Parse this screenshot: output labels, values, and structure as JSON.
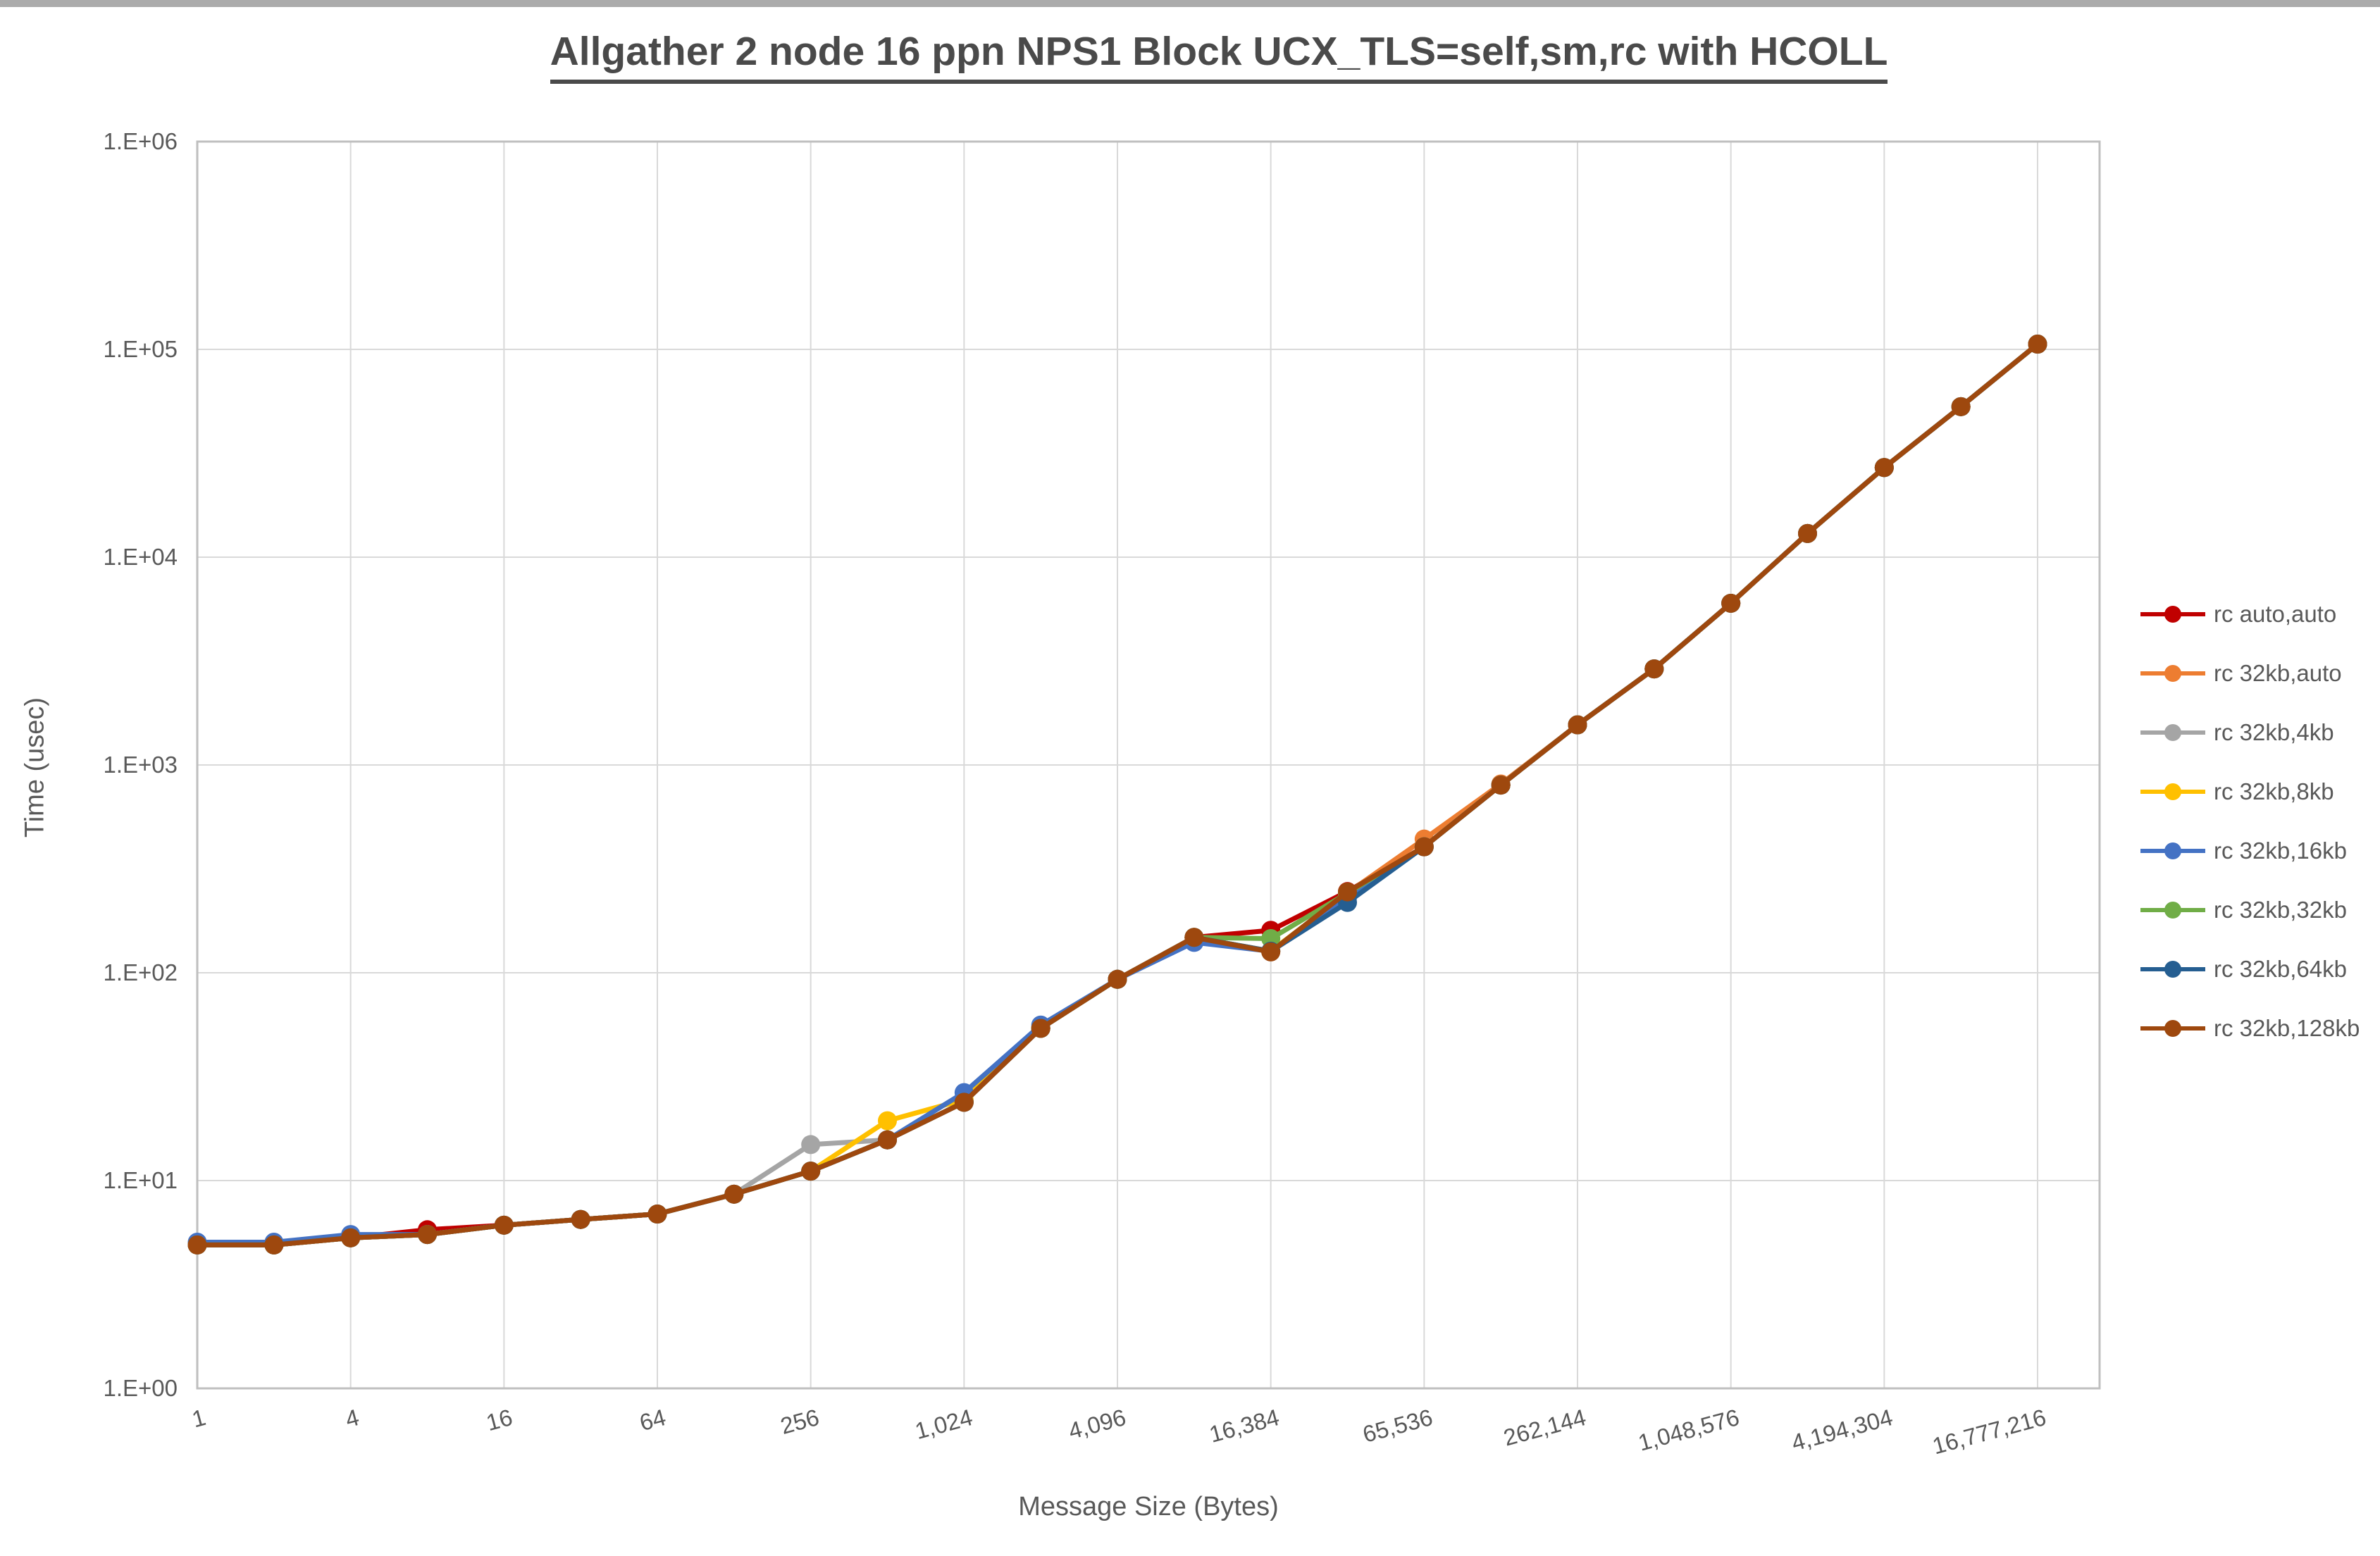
{
  "window": {
    "top_border_color": "#ababab"
  },
  "chart_data": {
    "type": "line",
    "title": "Allgather 2 node 16 ppn NPS1 Block UCX_TLS=self,sm,rc with HCOLL",
    "xlabel": "Message Size (Bytes)",
    "ylabel": "Time (usec)",
    "log_x": true,
    "log_y": true,
    "grid": true,
    "legend_position": "right",
    "grid_color": "#d9d9d9",
    "axis_color": "#bfbfbf",
    "tick_label_color": "#595959",
    "ylim": [
      1,
      1000000
    ],
    "y_ticks": [
      "1.E+00",
      "1.E+01",
      "1.E+02",
      "1.E+03",
      "1.E+04",
      "1.E+05",
      "1.E+06"
    ],
    "x_tick_values": [
      1,
      4,
      16,
      64,
      256,
      1024,
      4096,
      16384,
      65536,
      262144,
      1048576,
      4194304,
      16777216
    ],
    "x_tick_labels": [
      "1",
      "4",
      "16",
      "64",
      "256",
      "1,024",
      "4,096",
      "16,384",
      "65,536",
      "262,144",
      "1,048,576",
      "4,194,304",
      "16,777,216"
    ],
    "x": [
      1,
      2,
      4,
      8,
      16,
      32,
      64,
      128,
      256,
      512,
      1024,
      2048,
      4096,
      8192,
      16384,
      32768,
      65536,
      131072,
      262144,
      524288,
      1048576,
      2097152,
      4194304,
      8388608,
      16777216
    ],
    "series": [
      {
        "name": "rc auto,auto",
        "color": "#c00000",
        "values": [
          4.9,
          4.9,
          5.3,
          5.8,
          6.1,
          6.5,
          6.9,
          8.6,
          11.1,
          15.7,
          23.8,
          54,
          93,
          148,
          160,
          246,
          404,
          800,
          1560,
          2900,
          6000,
          13000,
          27000,
          53000,
          106000
        ]
      },
      {
        "name": "rc 32kb,auto",
        "color": "#ed7d31",
        "values": [
          4.9,
          4.9,
          5.3,
          5.5,
          6.1,
          6.5,
          6.9,
          8.6,
          11.1,
          15.7,
          23.8,
          54,
          93,
          148,
          127,
          242,
          440,
          810,
          1560,
          2900,
          6000,
          13000,
          27000,
          53000,
          106000
        ]
      },
      {
        "name": "rc 32kb,4kb",
        "color": "#a5a5a5",
        "values": [
          4.9,
          4.9,
          5.3,
          5.5,
          6.1,
          6.5,
          6.9,
          8.6,
          14.9,
          15.7,
          23.8,
          54,
          93,
          148,
          127,
          242,
          404,
          800,
          1560,
          2900,
          6000,
          13000,
          27000,
          53000,
          106000
        ]
      },
      {
        "name": "rc 32kb,8kb",
        "color": "#ffc000",
        "values": [
          4.9,
          4.9,
          5.3,
          5.5,
          6.1,
          6.5,
          6.9,
          8.6,
          11.1,
          19.4,
          24.5,
          54,
          93,
          148,
          127,
          242,
          404,
          800,
          1560,
          2900,
          6000,
          13000,
          27000,
          53000,
          106000
        ]
      },
      {
        "name": "rc 32kb,16kb",
        "color": "#4472c4",
        "values": [
          5.05,
          5.05,
          5.5,
          5.5,
          6.1,
          6.5,
          6.9,
          8.6,
          11.1,
          15.7,
          26.5,
          56,
          93,
          140,
          127,
          230,
          404,
          800,
          1560,
          2900,
          6000,
          13000,
          27000,
          53000,
          106000
        ]
      },
      {
        "name": "rc 32kb,32kb",
        "color": "#70ad47",
        "values": [
          4.9,
          4.9,
          5.3,
          5.5,
          6.1,
          6.5,
          6.9,
          8.6,
          11.1,
          15.7,
          23.8,
          54,
          93,
          148,
          146,
          242,
          404,
          800,
          1560,
          2900,
          6000,
          13000,
          27000,
          53000,
          106000
        ]
      },
      {
        "name": "rc 32kb,64kb",
        "color": "#255e91",
        "values": [
          4.9,
          4.9,
          5.3,
          5.5,
          6.1,
          6.5,
          6.9,
          8.6,
          11.1,
          15.7,
          23.8,
          54,
          93,
          148,
          127,
          218,
          404,
          800,
          1560,
          2900,
          6000,
          13000,
          27000,
          53000,
          106000
        ]
      },
      {
        "name": "rc 32kb,128kb",
        "color": "#9e480e",
        "values": [
          4.9,
          4.9,
          5.3,
          5.5,
          6.1,
          6.5,
          6.9,
          8.6,
          11.1,
          15.7,
          23.8,
          54,
          93,
          148,
          126,
          245,
          404,
          800,
          1560,
          2900,
          6000,
          13000,
          27000,
          53000,
          106000
        ]
      }
    ]
  }
}
